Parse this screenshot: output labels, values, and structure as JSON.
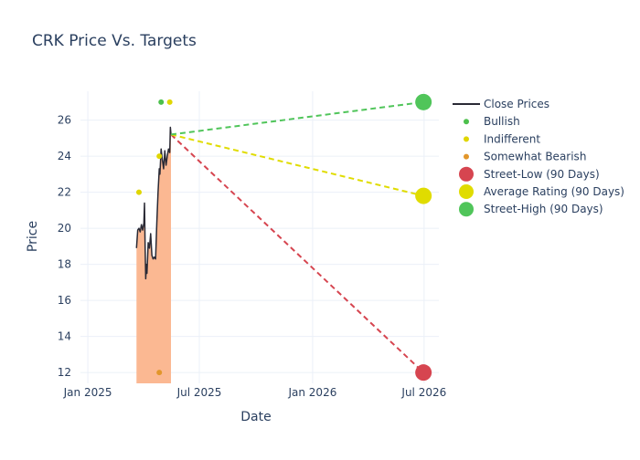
{
  "chart_data": {
    "type": "line",
    "title": "CRK Price Vs. Targets",
    "xlabel": "Date",
    "ylabel": "Price",
    "x_range": [
      "2024-12-20",
      "2026-07-25"
    ],
    "ylim": [
      11.4,
      27.6
    ],
    "grid": true,
    "legend_position": "right",
    "x_ticks": [
      {
        "date": "2025-01-01",
        "label": "Jan 2025"
      },
      {
        "date": "2025-07-01",
        "label": "Jul 2025"
      },
      {
        "date": "2026-01-01",
        "label": "Jan 2026"
      },
      {
        "date": "2026-07-01",
        "label": "Jul 2026"
      }
    ],
    "y_ticks": [
      12,
      14,
      16,
      18,
      20,
      22,
      24,
      26
    ],
    "close_prices": {
      "name": "Close Prices",
      "color": "#2a2a35",
      "fill_color": "#fbb892",
      "points": [
        [
          "2025-03-21",
          18.9
        ],
        [
          "2025-03-23",
          19.9
        ],
        [
          "2025-03-25",
          20.0
        ],
        [
          "2025-03-27",
          19.8
        ],
        [
          "2025-03-29",
          20.2
        ],
        [
          "2025-03-31",
          19.9
        ],
        [
          "2025-04-02",
          20.3
        ],
        [
          "2025-04-03",
          21.4
        ],
        [
          "2025-04-04",
          19.0
        ],
        [
          "2025-04-05",
          17.2
        ],
        [
          "2025-04-06",
          18.0
        ],
        [
          "2025-04-07",
          17.5
        ],
        [
          "2025-04-09",
          19.2
        ],
        [
          "2025-04-11",
          18.9
        ],
        [
          "2025-04-13",
          19.7
        ],
        [
          "2025-04-15",
          18.5
        ],
        [
          "2025-04-17",
          18.3
        ],
        [
          "2025-04-19",
          18.4
        ],
        [
          "2025-04-21",
          18.3
        ],
        [
          "2025-04-23",
          20.3
        ],
        [
          "2025-04-25",
          22.0
        ],
        [
          "2025-04-27",
          23.3
        ],
        [
          "2025-04-28",
          23.0
        ],
        [
          "2025-04-30",
          24.4
        ],
        [
          "2025-05-02",
          23.8
        ],
        [
          "2025-05-04",
          23.3
        ],
        [
          "2025-05-06",
          24.3
        ],
        [
          "2025-05-08",
          23.5
        ],
        [
          "2025-05-10",
          24.0
        ],
        [
          "2025-05-12",
          24.4
        ],
        [
          "2025-05-14",
          24.2
        ],
        [
          "2025-05-15",
          25.6
        ],
        [
          "2025-05-16",
          25.2
        ]
      ]
    },
    "rating_points": [
      {
        "series": "Bullish",
        "date": "2025-04-30",
        "value": 27.0
      },
      {
        "series": "Indifferent",
        "date": "2025-03-25",
        "value": 22.0
      },
      {
        "series": "Indifferent",
        "date": "2025-04-27",
        "value": 24.0
      },
      {
        "series": "Indifferent",
        "date": "2025-05-14",
        "value": 27.0
      },
      {
        "series": "Somewhat Bearish",
        "date": "2025-04-27",
        "value": 12.0
      }
    ],
    "targets": {
      "start": {
        "date": "2025-05-16",
        "value": 25.2
      },
      "end_date": "2026-06-30",
      "items": [
        {
          "series": "Street-Low (90 Days)",
          "value": 12.0
        },
        {
          "series": "Average Rating (90 Days)",
          "value": 21.8
        },
        {
          "series": "Street-High (90 Days)",
          "value": 27.0
        }
      ]
    },
    "series_colors": {
      "Bullish": "#4cc04c",
      "Indifferent": "#e0d600",
      "Somewhat Bearish": "#e2962b",
      "Street-Low (90 Days)": "#d64550",
      "Average Rating (90 Days)": "#e0dc00",
      "Street-High (90 Days)": "#50c55a"
    },
    "legend": [
      {
        "label": "Close Prices",
        "kind": "line"
      },
      {
        "label": "Bullish",
        "kind": "dot"
      },
      {
        "label": "Indifferent",
        "kind": "dot"
      },
      {
        "label": "Somewhat Bearish",
        "kind": "dot"
      },
      {
        "label": "Street-Low (90 Days)",
        "kind": "bigdot"
      },
      {
        "label": "Average Rating (90 Days)",
        "kind": "bigdot"
      },
      {
        "label": "Street-High (90 Days)",
        "kind": "bigdot"
      }
    ]
  }
}
